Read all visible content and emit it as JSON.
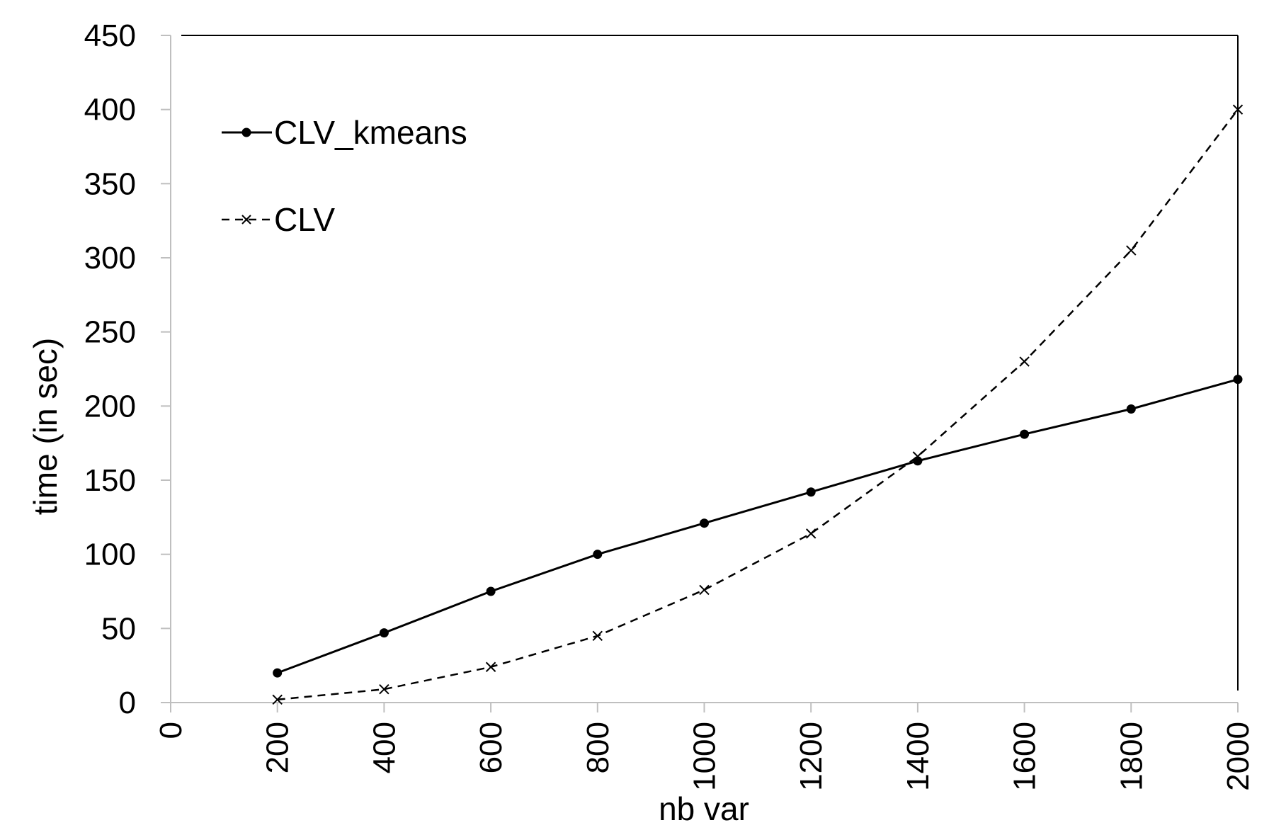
{
  "chart_data": {
    "type": "line",
    "title": "",
    "xlabel": "nb var",
    "ylabel": "time (in sec)",
    "xlim": [
      0,
      2000
    ],
    "ylim": [
      0,
      450
    ],
    "xticks": [
      "0",
      "200",
      "400",
      "600",
      "800",
      "1000",
      "1200",
      "1400",
      "1600",
      "1800",
      "2000"
    ],
    "yticks": [
      "0",
      "50",
      "100",
      "150",
      "200",
      "250",
      "300",
      "350",
      "400",
      "450"
    ],
    "grid": false,
    "legend_position": "top-left",
    "x": [
      200,
      400,
      600,
      800,
      1000,
      1200,
      1400,
      1600,
      1800,
      2000
    ],
    "series": [
      {
        "name": "CLV_kmeans",
        "style": "solid",
        "marker": "circle",
        "color": "#000000",
        "values": [
          20,
          47,
          75,
          100,
          121,
          142,
          163,
          181,
          198,
          218
        ]
      },
      {
        "name": "CLV",
        "style": "dashed",
        "marker": "x",
        "color": "#000000",
        "values": [
          2,
          9,
          24,
          45,
          76,
          114,
          166,
          230,
          305,
          400
        ]
      }
    ]
  }
}
